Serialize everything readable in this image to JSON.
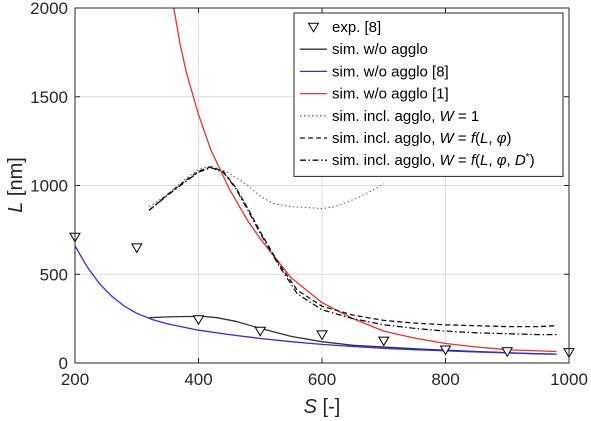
{
  "chart_data": {
    "type": "line",
    "xlabel": {
      "symbol": "S",
      "unit": " [-]"
    },
    "ylabel": {
      "symbol": "L",
      "unit": " [nm]"
    },
    "xlim": [
      200,
      1000
    ],
    "ylim": [
      0,
      2000
    ],
    "xticks": [
      "200",
      "400",
      "600",
      "800",
      "1000"
    ],
    "yticks": [
      "0",
      "500",
      "1000",
      "1500",
      "2000"
    ],
    "grid": true,
    "legend_position": "top-right",
    "series": [
      {
        "name": "exp. [8]",
        "legend_parts": [
          {
            "t": "exp. [8]"
          }
        ],
        "style": "marker",
        "marker": "triangle-down",
        "color": "#000000",
        "x": [
          200,
          300,
          400,
          500,
          600,
          700,
          800,
          900,
          1000
        ],
        "y": [
          710,
          650,
          245,
          180,
          160,
          125,
          75,
          65,
          60
        ]
      },
      {
        "name": "sim. w/o agglo",
        "legend_parts": [
          {
            "t": "sim. w/o agglo"
          }
        ],
        "style": "solid",
        "color": "#333333",
        "x": [
          320,
          350,
          380,
          410,
          430,
          460,
          500,
          550,
          600,
          650,
          700,
          750,
          800,
          850,
          900,
          950,
          980
        ],
        "y": [
          255,
          260,
          262,
          262,
          255,
          235,
          195,
          150,
          120,
          100,
          90,
          80,
          72,
          65,
          58,
          52,
          50
        ]
      },
      {
        "name": "sim. w/o agglo [8]",
        "legend_parts": [
          {
            "t": "sim. w/o agglo [8]"
          }
        ],
        "style": "solid",
        "color": "#2e2ee6",
        "x": [
          200,
          220,
          240,
          260,
          280,
          300,
          325,
          350,
          400,
          450,
          500,
          550,
          600,
          650,
          700,
          750,
          800,
          850,
          900,
          950,
          980
        ],
        "y": [
          660,
          540,
          445,
          375,
          320,
          280,
          245,
          220,
          185,
          160,
          138,
          120,
          105,
          93,
          83,
          75,
          68,
          62,
          57,
          52,
          50
        ]
      },
      {
        "name": "sim. w/o agglo [1]",
        "legend_parts": [
          {
            "t": "sim. w/o agglo [1]"
          }
        ],
        "style": "solid",
        "color": "#e8302e",
        "x": [
          360,
          370,
          380,
          400,
          420,
          450,
          480,
          500,
          550,
          600,
          650,
          700,
          750,
          800,
          850,
          900,
          950,
          980
        ],
        "y": [
          2000,
          1800,
          1640,
          1400,
          1200,
          980,
          800,
          700,
          480,
          340,
          250,
          180,
          140,
          110,
          90,
          75,
          68,
          65
        ]
      },
      {
        "name": "sim. incl. agglo, W = 1",
        "legend_parts": [
          {
            "t": "sim. incl. agglo, "
          },
          {
            "t": "W",
            "italic": true
          },
          {
            "t": " = 1"
          }
        ],
        "style": "dotted",
        "color": "#666666",
        "x": [
          320,
          350,
          380,
          400,
          420,
          450,
          480,
          500,
          520,
          550,
          580,
          600,
          620,
          640,
          660,
          680,
          700
        ],
        "y": [
          880,
          950,
          1040,
          1090,
          1110,
          1070,
          1000,
          940,
          900,
          880,
          875,
          870,
          880,
          905,
          935,
          970,
          1010
        ]
      },
      {
        "name": "sim. incl. agglo, W = f(L, φ)",
        "legend_parts": [
          {
            "t": "sim. incl. agglo, "
          },
          {
            "t": "W",
            "italic": true
          },
          {
            "t": " = "
          },
          {
            "t": "f",
            "italic": true
          },
          {
            "t": "("
          },
          {
            "t": "L",
            "italic": true
          },
          {
            "t": ", "
          },
          {
            "t": "φ",
            "italic": true
          },
          {
            "t": ")"
          }
        ],
        "style": "dashed",
        "color": "#111111",
        "x": [
          320,
          350,
          380,
          400,
          420,
          440,
          460,
          480,
          500,
          530,
          560,
          600,
          650,
          700,
          750,
          800,
          850,
          900,
          950,
          980
        ],
        "y": [
          860,
          950,
          1030,
          1080,
          1105,
          1080,
          990,
          870,
          740,
          560,
          410,
          320,
          270,
          240,
          225,
          215,
          210,
          205,
          205,
          210
        ]
      },
      {
        "name": "sim. incl. agglo, W = f(L, φ, D*)",
        "legend_parts": [
          {
            "t": "sim. incl. agglo, "
          },
          {
            "t": "W",
            "italic": true
          },
          {
            "t": " = "
          },
          {
            "t": "f",
            "italic": true
          },
          {
            "t": "("
          },
          {
            "t": "L",
            "italic": true
          },
          {
            "t": ", "
          },
          {
            "t": "φ",
            "italic": true
          },
          {
            "t": ", "
          },
          {
            "t": "D",
            "italic": true
          },
          {
            "t": "*",
            "sup": true
          },
          {
            "t": ")"
          }
        ],
        "style": "dashdot",
        "color": "#111111",
        "x": [
          320,
          350,
          380,
          400,
          420,
          440,
          460,
          480,
          500,
          530,
          560,
          600,
          650,
          700,
          750,
          800,
          850,
          900,
          950,
          980
        ],
        "y": [
          860,
          945,
          1025,
          1075,
          1100,
          1075,
          985,
          860,
          730,
          550,
          390,
          300,
          250,
          215,
          195,
          180,
          170,
          165,
          160,
          160
        ]
      }
    ]
  }
}
